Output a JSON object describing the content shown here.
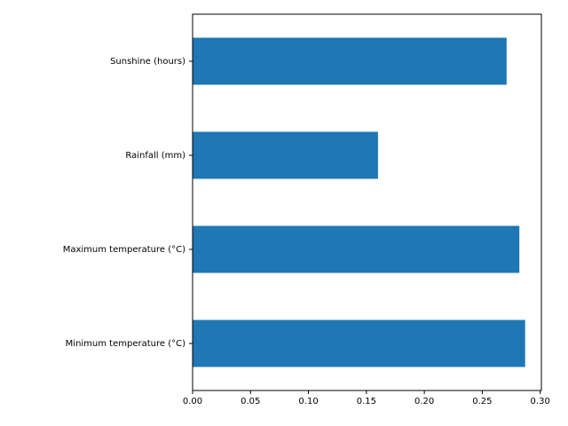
{
  "chart_data": {
    "type": "bar",
    "orientation": "horizontal",
    "categories": [
      "Minimum temperature (°C)",
      "Maximum temperature (°C)",
      "Rainfall (mm)",
      "Sunshine (hours)"
    ],
    "values": [
      0.287,
      0.282,
      0.16,
      0.271
    ],
    "xlim": [
      0.0,
      0.301
    ],
    "xticks": [
      "0.00",
      "0.05",
      "0.10",
      "0.15",
      "0.20",
      "0.25",
      "0.30"
    ],
    "title": "",
    "xlabel": "",
    "ylabel": "",
    "grid": false,
    "bar_color": "#1f77b4"
  }
}
